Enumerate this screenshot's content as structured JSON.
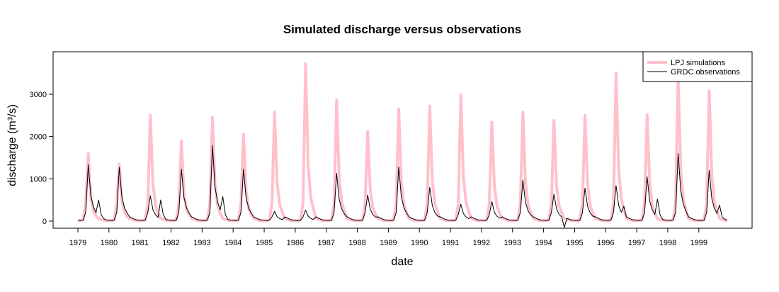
{
  "chart_data": {
    "type": "line",
    "title": "Simulated discharge versus observations",
    "xlabel": "date",
    "ylabel": "discharge (m³/s)",
    "categories": [
      "1979",
      null,
      null,
      null,
      null,
      null,
      null,
      null,
      null,
      null,
      null,
      null,
      "1980",
      null,
      null,
      null,
      null,
      null,
      null,
      null,
      null,
      null,
      null,
      null,
      "1981",
      null,
      null,
      null,
      null,
      null,
      null,
      null,
      null,
      null,
      null,
      null,
      "1982",
      null,
      null,
      null,
      null,
      null,
      null,
      null,
      null,
      null,
      null,
      null,
      "1983",
      null,
      null,
      null,
      null,
      null,
      null,
      null,
      null,
      null,
      null,
      null,
      "1984",
      null,
      null,
      null,
      null,
      null,
      null,
      null,
      null,
      null,
      null,
      null,
      "1985",
      null,
      null,
      null,
      null,
      null,
      null,
      null,
      null,
      null,
      null,
      null,
      "1986",
      null,
      null,
      null,
      null,
      null,
      null,
      null,
      null,
      null,
      null,
      null,
      "1987",
      null,
      null,
      null,
      null,
      null,
      null,
      null,
      null,
      null,
      null,
      null,
      "1988",
      null,
      null,
      null,
      null,
      null,
      null,
      null,
      null,
      null,
      null,
      null,
      "1989",
      null,
      null,
      null,
      null,
      null,
      null,
      null,
      null,
      null,
      null,
      null,
      "1990",
      null,
      null,
      null,
      null,
      null,
      null,
      null,
      null,
      null,
      null,
      null,
      "1991",
      null,
      null,
      null,
      null,
      null,
      null,
      null,
      null,
      null,
      null,
      null,
      "1992",
      null,
      null,
      null,
      null,
      null,
      null,
      null,
      null,
      null,
      null,
      null,
      "1993",
      null,
      null,
      null,
      null,
      null,
      null,
      null,
      null,
      null,
      null,
      null,
      "1994",
      null,
      null,
      null,
      null,
      null,
      null,
      null,
      null,
      null,
      null,
      null,
      "1995",
      null,
      null,
      null,
      null,
      null,
      null,
      null,
      null,
      null,
      null,
      null,
      "1996",
      null,
      null,
      null,
      null,
      null,
      null,
      null,
      null,
      null,
      null,
      null,
      "1997",
      null,
      null,
      null,
      null,
      null,
      null,
      null,
      null,
      null,
      null,
      null,
      "1998",
      null,
      null,
      null,
      null,
      null,
      null,
      null,
      null,
      null,
      null,
      null,
      "1999",
      null,
      null,
      null,
      null,
      null,
      null,
      null,
      null,
      null,
      null,
      null
    ],
    "series": [
      {
        "name": "LPJ simulations",
        "color": "#ffc0cb",
        "width": 4,
        "values": [
          10,
          10,
          30,
          400,
          1600,
          560,
          240,
          128,
          60,
          40,
          20,
          10,
          10,
          10,
          30,
          400,
          1350,
          473,
          203,
          108,
          60,
          40,
          20,
          10,
          10,
          10,
          30,
          400,
          2500,
          875,
          375,
          200,
          60,
          40,
          20,
          10,
          10,
          10,
          30,
          400,
          1900,
          665,
          285,
          152,
          60,
          40,
          20,
          10,
          10,
          10,
          30,
          400,
          2450,
          858,
          368,
          196,
          60,
          40,
          20,
          10,
          10,
          10,
          30,
          400,
          2050,
          718,
          308,
          164,
          60,
          40,
          20,
          10,
          10,
          10,
          30,
          400,
          2580,
          903,
          387,
          206,
          60,
          40,
          20,
          10,
          10,
          10,
          30,
          400,
          3720,
          1302,
          558,
          298,
          60,
          40,
          20,
          10,
          10,
          10,
          30,
          400,
          2870,
          1005,
          431,
          230,
          60,
          40,
          20,
          10,
          10,
          10,
          30,
          400,
          2120,
          742,
          318,
          170,
          60,
          40,
          20,
          10,
          10,
          10,
          30,
          400,
          2650,
          928,
          398,
          212,
          60,
          40,
          20,
          10,
          10,
          10,
          30,
          400,
          2720,
          952,
          408,
          218,
          60,
          40,
          20,
          10,
          10,
          10,
          30,
          400,
          2990,
          1047,
          449,
          239,
          60,
          40,
          20,
          10,
          10,
          10,
          30,
          400,
          2340,
          819,
          351,
          187,
          60,
          40,
          20,
          10,
          10,
          10,
          30,
          400,
          2570,
          900,
          386,
          206,
          60,
          40,
          20,
          10,
          10,
          10,
          30,
          400,
          2380,
          833,
          357,
          190,
          60,
          40,
          20,
          10,
          10,
          10,
          30,
          400,
          2500,
          875,
          375,
          200,
          60,
          40,
          20,
          10,
          10,
          10,
          30,
          400,
          3500,
          1225,
          525,
          280,
          60,
          40,
          20,
          10,
          10,
          10,
          30,
          400,
          2520,
          882,
          378,
          202,
          60,
          40,
          20,
          10,
          10,
          10,
          30,
          400,
          3450,
          1208,
          518,
          276,
          60,
          40,
          20,
          10,
          10,
          10,
          30,
          400,
          3080,
          1078,
          462,
          246,
          60,
          40,
          20,
          10
        ]
      },
      {
        "name": "GRDC observations",
        "color": "#000000",
        "width": 1,
        "values": [
          20,
          15,
          20,
          200,
          1330,
          599,
          333,
          200,
          500,
          150,
          60,
          25,
          20,
          15,
          20,
          200,
          1270,
          572,
          318,
          191,
          100,
          70,
          40,
          25,
          20,
          15,
          20,
          200,
          600,
          270,
          150,
          90,
          500,
          150,
          40,
          25,
          20,
          15,
          20,
          200,
          1230,
          554,
          308,
          185,
          100,
          70,
          40,
          25,
          20,
          15,
          20,
          200,
          1790,
          806,
          448,
          269,
          580,
          150,
          40,
          25,
          20,
          15,
          20,
          200,
          1230,
          554,
          308,
          185,
          100,
          70,
          40,
          25,
          20,
          15,
          20,
          100,
          230,
          104,
          58,
          35,
          100,
          70,
          40,
          25,
          20,
          15,
          20,
          100,
          260,
          117,
          65,
          39,
          100,
          70,
          40,
          25,
          20,
          15,
          20,
          200,
          1130,
          509,
          283,
          170,
          100,
          70,
          40,
          25,
          20,
          15,
          20,
          200,
          620,
          279,
          155,
          93,
          100,
          70,
          40,
          25,
          20,
          15,
          20,
          200,
          1280,
          576,
          320,
          192,
          100,
          70,
          40,
          25,
          20,
          15,
          20,
          200,
          800,
          360,
          200,
          120,
          100,
          70,
          40,
          25,
          20,
          15,
          20,
          150,
          400,
          180,
          100,
          60,
          100,
          70,
          40,
          25,
          20,
          15,
          20,
          150,
          460,
          207,
          115,
          69,
          100,
          70,
          40,
          25,
          20,
          15,
          20,
          200,
          970,
          437,
          243,
          146,
          100,
          70,
          40,
          25,
          20,
          15,
          20,
          200,
          640,
          288,
          160,
          96,
          -150,
          70,
          40,
          25,
          20,
          15,
          20,
          200,
          780,
          351,
          195,
          117,
          100,
          70,
          40,
          25,
          20,
          15,
          20,
          200,
          840,
          378,
          210,
          350,
          100,
          70,
          40,
          25,
          20,
          15,
          20,
          200,
          1050,
          473,
          263,
          158,
          520,
          150,
          40,
          25,
          20,
          15,
          20,
          200,
          1600,
          720,
          400,
          240,
          100,
          70,
          40,
          25,
          20,
          15,
          20,
          200,
          1200,
          540,
          300,
          180,
          380,
          100,
          40,
          25
        ]
      }
    ],
    "ylim": [
      -168,
      4005
    ],
    "yticks": [
      0,
      1000,
      2000,
      3000
    ],
    "legend": "top-right"
  }
}
